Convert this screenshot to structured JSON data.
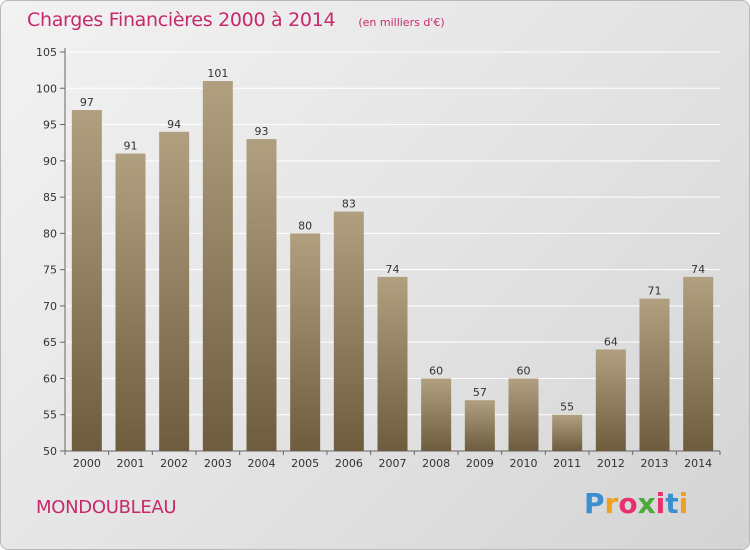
{
  "header": {
    "title": "Charges Financières 2000 à 2014",
    "unit": "(en milliers d'€)"
  },
  "footer": {
    "place": "MONDOUBLEAU",
    "logo_letters": [
      "P",
      "r",
      "o",
      "x",
      "i",
      "t",
      "i"
    ],
    "logo_colors": [
      "#3a8fd0",
      "#f0a020",
      "#e83070",
      "#4aaa3a",
      "#e83070",
      "#3a8fd0",
      "#f0a020"
    ]
  },
  "colors": {
    "title": "#c8286c",
    "bar_top": "#b0a080",
    "bar_bottom": "#6e5c3e"
  },
  "chart_data": {
    "type": "bar",
    "categories": [
      "2000",
      "2001",
      "2002",
      "2003",
      "2004",
      "2005",
      "2006",
      "2007",
      "2008",
      "2009",
      "2010",
      "2011",
      "2012",
      "2013",
      "2014"
    ],
    "values": [
      97,
      91,
      94,
      101,
      93,
      80,
      83,
      74,
      60,
      57,
      60,
      55,
      64,
      71,
      74
    ],
    "title": "Charges Financières 2000 à 2014",
    "xlabel": "",
    "ylabel": "",
    "ylim": [
      50,
      105
    ],
    "yticks": [
      50,
      55,
      60,
      65,
      70,
      75,
      80,
      85,
      90,
      95,
      100,
      105
    ],
    "grid": "horizontal",
    "data_labels": true
  }
}
